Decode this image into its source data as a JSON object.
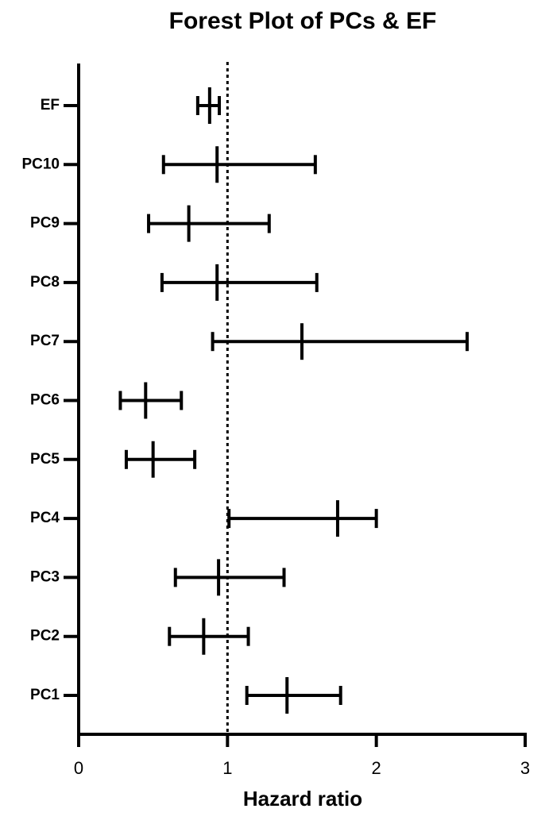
{
  "chart_data": {
    "type": "forest",
    "title": "Forest Plot of PCs & EF",
    "x_label": "Hazard ratio",
    "categories": [
      "EF",
      "PC10",
      "PC9",
      "PC8",
      "PC7",
      "PC6",
      "PC5",
      "PC4",
      "PC3",
      "PC2",
      "PC1"
    ],
    "values": [
      0.88,
      0.93,
      0.74,
      0.93,
      1.5,
      0.45,
      0.5,
      1.74,
      0.94,
      0.84,
      1.4
    ],
    "lower": [
      0.8,
      0.57,
      0.47,
      0.56,
      0.9,
      0.28,
      0.32,
      1.01,
      0.65,
      0.61,
      1.13
    ],
    "upper": [
      0.945,
      1.59,
      1.28,
      1.6,
      2.61,
      0.69,
      0.78,
      2.0,
      1.38,
      1.14,
      1.76
    ],
    "color": "#000000",
    "xlim": [
      0,
      3
    ],
    "xticks": [
      0,
      1,
      2,
      3
    ],
    "reference_line": 1
  }
}
